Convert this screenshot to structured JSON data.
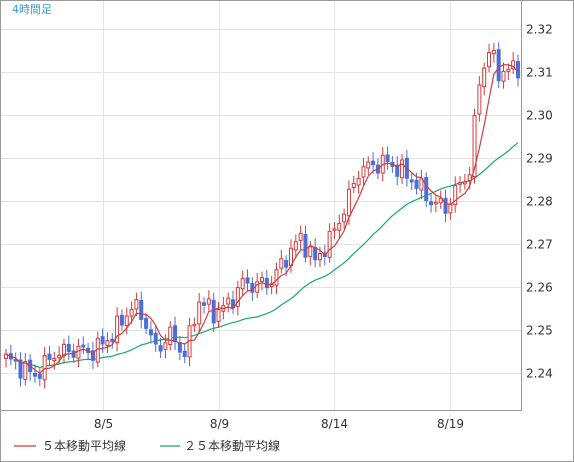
{
  "chart_data": {
    "type": "candlestick",
    "title": "4時間足",
    "x_tick_labels": [
      "8/5",
      "8/9",
      "8/14",
      "8/19"
    ],
    "y_ticks": [
      2.24,
      2.25,
      2.26,
      2.27,
      2.28,
      2.29,
      2.3,
      2.31,
      2.32
    ],
    "y_tick_labels": [
      "2.24",
      "2.25",
      "2.26",
      "2.27",
      "2.28",
      "2.29",
      "2.30",
      "2.31",
      "2.32"
    ],
    "ylim": [
      2.2315,
      2.3265
    ],
    "grid": true,
    "legend_position": "bottom-left",
    "colors": {
      "up": "#d23c3c",
      "down": "#4a6fd8",
      "ma5": "#d23c3c",
      "ma25": "#1aa870"
    },
    "series": [
      {
        "name": "５本移動平均線",
        "color": "#d23c3c"
      },
      {
        "name": "２５本移動平均線",
        "color": "#1aa870"
      }
    ],
    "anchors": [
      [
        0,
        2.2435
      ],
      [
        6,
        2.2395
      ],
      [
        10,
        2.2445
      ],
      [
        14,
        2.2455
      ],
      [
        18,
        2.245
      ],
      [
        22,
        2.249
      ],
      [
        26,
        2.2555
      ],
      [
        28,
        2.254
      ],
      [
        31,
        2.2455
      ],
      [
        34,
        2.249
      ],
      [
        37,
        2.2445
      ],
      [
        40,
        2.257
      ],
      [
        43,
        2.254
      ],
      [
        46,
        2.256
      ],
      [
        49,
        2.261
      ],
      [
        52,
        2.2605
      ],
      [
        55,
        2.2615
      ],
      [
        58,
        2.267
      ],
      [
        61,
        2.2715
      ],
      [
        64,
        2.266
      ],
      [
        67,
        2.271
      ],
      [
        70,
        2.278
      ],
      [
        73,
        2.287
      ],
      [
        76,
        2.2885
      ],
      [
        79,
        2.289
      ],
      [
        82,
        2.287
      ],
      [
        85,
        2.284
      ],
      [
        88,
        2.28
      ],
      [
        91,
        2.2785
      ],
      [
        94,
        2.284
      ],
      [
        96,
        2.287
      ],
      [
        98,
        2.308
      ],
      [
        100,
        2.315
      ],
      [
        102,
        2.31
      ],
      [
        104,
        2.3105
      ],
      [
        106,
        2.311
      ]
    ],
    "count": 107
  }
}
